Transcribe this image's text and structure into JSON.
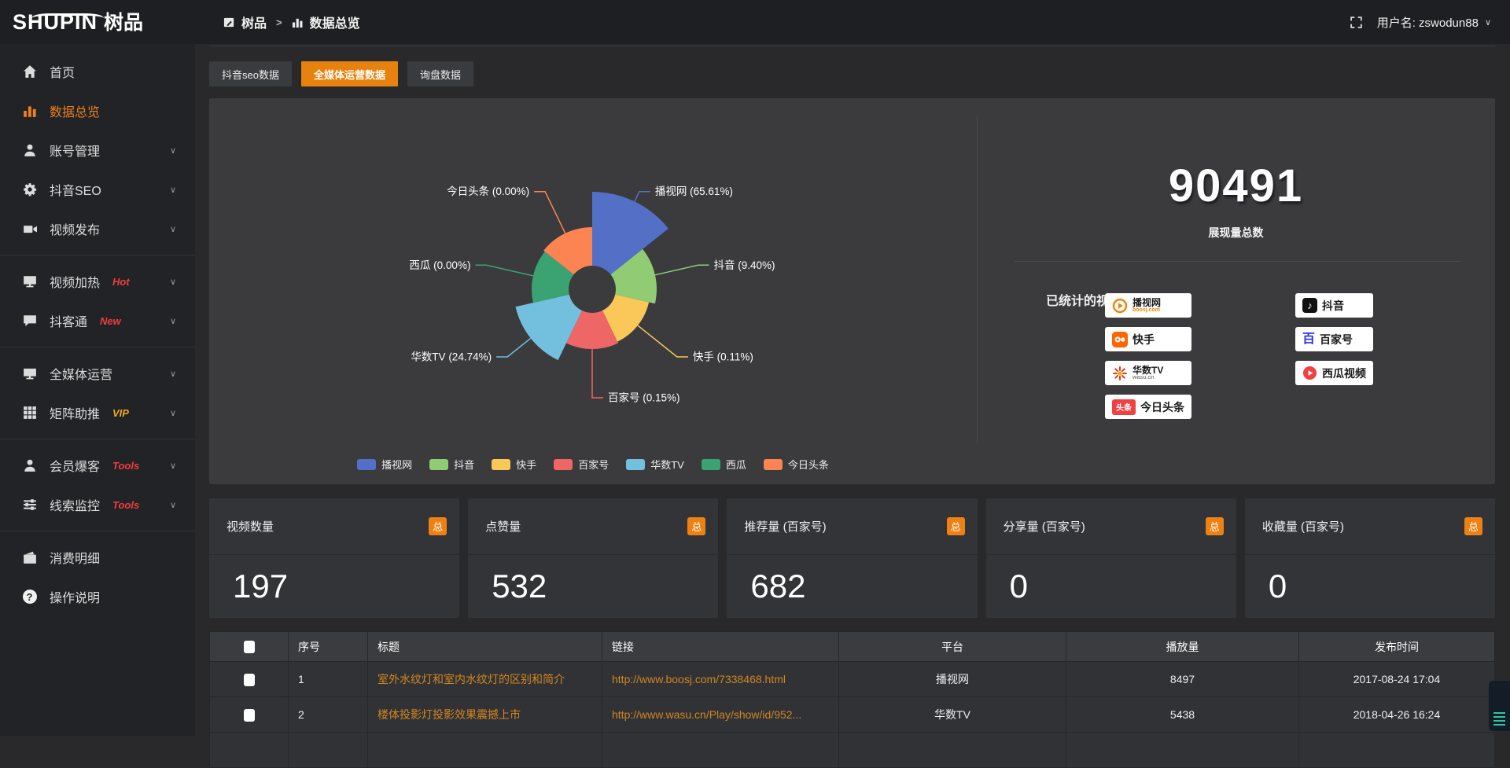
{
  "header": {
    "logo_en": "SHUPIN",
    "logo_cn": "树品",
    "breadcrumb": {
      "root": "树品",
      "separator": ">",
      "current": "数据总览"
    },
    "username": "用户名: zswodun88"
  },
  "tabs": [
    {
      "label": "抖音seo数据",
      "active": false
    },
    {
      "label": "全媒体运营数据",
      "active": true
    },
    {
      "label": "询盘数据",
      "active": false
    }
  ],
  "sidebar": {
    "items": [
      {
        "label": "首页",
        "icon": "home",
        "chevron": false,
        "active": false
      },
      {
        "label": "数据总览",
        "icon": "chart",
        "chevron": false,
        "active": true
      },
      {
        "label": "账号管理",
        "icon": "user",
        "chevron": true,
        "active": false
      },
      {
        "label": "抖音SEO",
        "icon": "gear",
        "chevron": true,
        "active": false
      },
      {
        "label": "视频发布",
        "icon": "camera",
        "chevron": true,
        "active": false,
        "divider_after": true
      },
      {
        "label": "视频加热",
        "icon": "monitor",
        "badge": "Hot",
        "badge_color": "#f23c3c",
        "chevron": true,
        "active": false
      },
      {
        "label": "抖客通",
        "icon": "chat",
        "badge": "New",
        "badge_color": "#f23c3c",
        "chevron": true,
        "active": false,
        "divider_after": true
      },
      {
        "label": "全媒体运营",
        "icon": "screen",
        "chevron": true,
        "active": false
      },
      {
        "label": "矩阵助推",
        "icon": "grid",
        "badge": "VIP",
        "badge_color": "#f0a818",
        "chevron": true,
        "active": false,
        "divider_after": true
      },
      {
        "label": "会员爆客",
        "icon": "member",
        "badge": "Tools",
        "badge_color": "#f23c3c",
        "chevron": true,
        "active": false
      },
      {
        "label": "线索监控",
        "icon": "sliders",
        "badge": "Tools",
        "badge_color": "#f23c3c",
        "chevron": true,
        "active": false,
        "divider_after": true
      },
      {
        "label": "消费明细",
        "icon": "wallet",
        "chevron": false,
        "active": false
      },
      {
        "label": "操作说明",
        "icon": "help",
        "chevron": false,
        "active": false
      }
    ]
  },
  "chart_data": {
    "type": "pie",
    "variant": "nightingale-rose",
    "legend_position": "bottom",
    "inner_radius": 30,
    "items": [
      {
        "name": "播视网",
        "value": 65.61,
        "label": "播视网 (65.61%)",
        "color": "#5470c6",
        "radius": 124
      },
      {
        "name": "抖音",
        "value": 9.4,
        "label": "抖音 (9.40%)",
        "color": "#91cc75",
        "radius": 82
      },
      {
        "name": "快手",
        "value": 0.11,
        "label": "快手 (0.11%)",
        "color": "#fac858",
        "radius": 74
      },
      {
        "name": "百家号",
        "value": 0.15,
        "label": "百家号 (0.15%)",
        "color": "#ee6666",
        "radius": 76
      },
      {
        "name": "华数TV",
        "value": 24.74,
        "label": "华数TV (24.74%)",
        "color": "#73c0de",
        "radius": 100
      },
      {
        "name": "西瓜",
        "value": 0.0,
        "label": "西瓜 (0.00%)",
        "color": "#3ba272",
        "radius": 77
      },
      {
        "name": "今日头条",
        "value": 0.0,
        "label": "今日头条 (0.00%)",
        "color": "#fc8452",
        "radius": 79
      }
    ]
  },
  "summary": {
    "total_value": "90491",
    "total_label": "展现量总数",
    "platforms_label": "已统计的视频平台:",
    "platforms": [
      {
        "name": "播视网",
        "sub": "boosj.com",
        "logo": "boosj",
        "col": 0
      },
      {
        "name": "快手",
        "logo": "kuaishou",
        "col": 0
      },
      {
        "name": "华数TV",
        "sub": "wasu.cn",
        "logo": "wasu",
        "col": 0
      },
      {
        "name": "今日头条",
        "logo": "toutiao",
        "col": 0
      },
      {
        "name": "抖音",
        "logo": "douyin",
        "col": 1
      },
      {
        "name": "百家号",
        "logo": "baijia",
        "col": 1
      },
      {
        "name": "西瓜视频",
        "logo": "xigua",
        "col": 1
      }
    ]
  },
  "stat_cards": [
    {
      "title": "视频数量",
      "badge": "总",
      "value": "197"
    },
    {
      "title": "点赞量",
      "badge": "总",
      "value": "532"
    },
    {
      "title": "推荐量 (百家号)",
      "badge": "总",
      "value": "682"
    },
    {
      "title": "分享量 (百家号)",
      "badge": "总",
      "value": "0"
    },
    {
      "title": "收藏量 (百家号)",
      "badge": "总",
      "value": "0"
    }
  ],
  "table": {
    "headers": [
      "序号",
      "标题",
      "链接",
      "平台",
      "播放量",
      "发布时间"
    ],
    "rows": [
      {
        "index": "1",
        "title": "室外水纹灯和室内水纹灯的区别和简介",
        "link": "http://www.boosj.com/7338468.html",
        "platform": "播视网",
        "plays": "8497",
        "time": "2017-08-24 17:04"
      },
      {
        "index": "2",
        "title": "楼体投影灯投影效果震撼上市",
        "link": "http://www.wasu.cn/Play/show/id/952...",
        "platform": "华数TV",
        "plays": "5438",
        "time": "2018-04-26 16:24"
      },
      {
        "index": "",
        "title": "",
        "link": "",
        "platform": "",
        "plays": "",
        "time": ""
      }
    ]
  }
}
